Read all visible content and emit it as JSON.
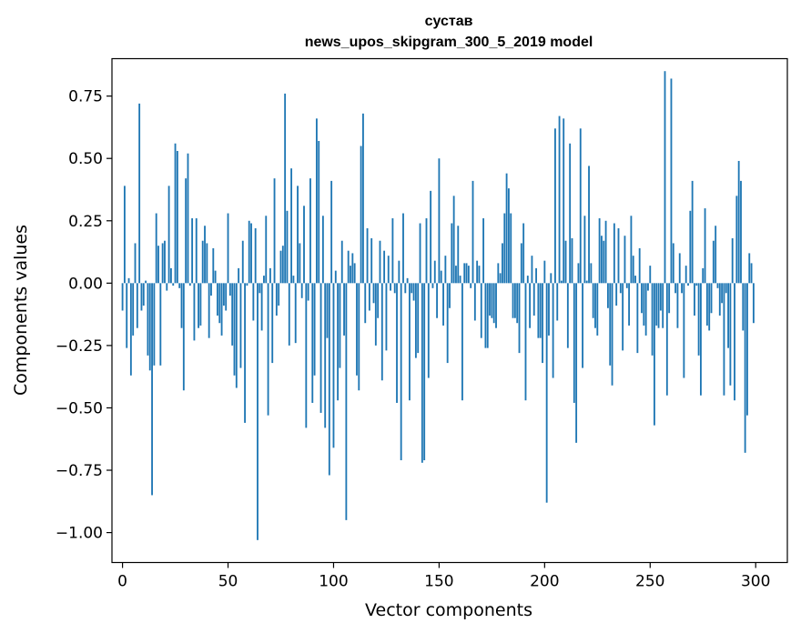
{
  "chart_data": {
    "type": "bar",
    "title": "сустав",
    "subtitle": "news_upos_skipgram_300_5_2019 model",
    "xlabel": "Vector components",
    "ylabel": "Components values",
    "xlim": [
      -5,
      315
    ],
    "ylim": [
      -1.12,
      0.9
    ],
    "grid": false,
    "color": "#1f77b4",
    "x_ticks": [
      0,
      50,
      100,
      150,
      200,
      250,
      300
    ],
    "x_tick_labels": [
      "0",
      "50",
      "100",
      "150",
      "200",
      "250",
      "300"
    ],
    "y_ticks": [
      0.75,
      0.5,
      0.25,
      0.0,
      -0.25,
      -0.5,
      -0.75,
      -1.0
    ],
    "y_tick_labels": [
      "0.75",
      "0.50",
      "0.25",
      "0.00",
      "−0.25",
      "−0.50",
      "−0.75",
      "−1.00"
    ],
    "values": [
      -0.11,
      0.39,
      -0.26,
      0.02,
      -0.37,
      -0.21,
      0.16,
      -0.18,
      0.72,
      -0.11,
      -0.09,
      0.01,
      -0.29,
      -0.35,
      -0.85,
      -0.33,
      0.28,
      0.15,
      -0.33,
      0.16,
      0.17,
      -0.03,
      0.39,
      0.06,
      -0.01,
      0.56,
      0.53,
      -0.02,
      -0.18,
      -0.43,
      0.42,
      0.52,
      -0.01,
      0.26,
      -0.23,
      0.26,
      -0.18,
      -0.17,
      0.17,
      0.23,
      0.16,
      -0.22,
      -0.05,
      0.14,
      0.05,
      -0.13,
      -0.16,
      -0.21,
      -0.09,
      -0.11,
      0.28,
      -0.05,
      -0.25,
      -0.37,
      -0.42,
      0.06,
      -0.34,
      0.17,
      -0.56,
      -0.01,
      0.25,
      0.24,
      -0.15,
      0.22,
      -1.03,
      -0.04,
      -0.19,
      0.03,
      0.27,
      -0.53,
      0.06,
      -0.32,
      0.42,
      -0.13,
      -0.09,
      0.13,
      0.15,
      0.76,
      0.29,
      -0.25,
      0.46,
      0.03,
      -0.24,
      0.39,
      0.16,
      -0.06,
      0.31,
      -0.58,
      -0.07,
      0.42,
      -0.48,
      -0.37,
      0.66,
      0.57,
      -0.52,
      0.27,
      -0.58,
      -0.22,
      -0.77,
      0.41,
      -0.66,
      0.05,
      -0.47,
      -0.34,
      0.17,
      -0.21,
      -0.95,
      0.13,
      0.07,
      0.12,
      0.08,
      -0.37,
      -0.43,
      0.55,
      0.68,
      -0.16,
      0.22,
      -0.11,
      0.18,
      -0.08,
      -0.25,
      -0.14,
      0.17,
      -0.39,
      0.13,
      -0.27,
      0.11,
      -0.03,
      0.26,
      -0.04,
      -0.48,
      0.09,
      -0.71,
      0.28,
      -0.04,
      0.02,
      -0.47,
      -0.04,
      -0.07,
      -0.3,
      -0.28,
      0.24,
      -0.72,
      -0.71,
      0.26,
      -0.38,
      0.37,
      -0.02,
      0.09,
      -0.14,
      0.5,
      0.05,
      -0.17,
      0.11,
      -0.32,
      -0.1,
      0.24,
      0.35,
      0.07,
      0.23,
      0.03,
      -0.47,
      0.08,
      0.08,
      0.07,
      -0.02,
      0.41,
      -0.15,
      0.09,
      0.07,
      -0.22,
      0.26,
      -0.26,
      -0.26,
      -0.13,
      -0.14,
      -0.16,
      -0.18,
      0.08,
      0.04,
      0.16,
      0.28,
      0.44,
      0.38,
      0.28,
      -0.14,
      -0.14,
      -0.16,
      -0.28,
      0.16,
      0.24,
      -0.47,
      0.03,
      -0.18,
      0.11,
      -0.13,
      0.06,
      -0.22,
      -0.22,
      -0.32,
      0.09,
      -0.88,
      -0.21,
      0.04,
      -0.38,
      0.62,
      -0.15,
      0.67,
      0.01,
      0.66,
      0.17,
      -0.26,
      0.56,
      0.18,
      -0.48,
      -0.64,
      0.08,
      0.62,
      -0.34,
      0.27,
      0.01,
      0.47,
      0.08,
      -0.14,
      -0.18,
      -0.21,
      0.26,
      0.19,
      0.17,
      0.25,
      -0.1,
      -0.33,
      -0.41,
      0.24,
      -0.09,
      0.22,
      -0.04,
      -0.27,
      0.19,
      -0.02,
      -0.17,
      0.27,
      0.11,
      0.03,
      -0.28,
      0.14,
      -0.12,
      -0.17,
      -0.21,
      -0.03,
      0.07,
      -0.29,
      -0.57,
      -0.17,
      -0.18,
      -0.11,
      -0.18,
      0.85,
      -0.45,
      -0.12,
      0.82,
      0.16,
      -0.04,
      -0.18,
      0.12,
      -0.04,
      -0.38,
      0.07,
      -0.01,
      0.29,
      0.41,
      -0.13,
      -0.01,
      -0.29,
      -0.45,
      0.06,
      0.3,
      -0.17,
      -0.19,
      -0.12,
      0.17,
      0.23,
      -0.02,
      -0.13,
      -0.08,
      -0.45,
      -0.04,
      -0.26,
      -0.41,
      0.18,
      -0.47,
      0.35,
      0.49,
      0.41,
      -0.19,
      -0.68,
      -0.53,
      0.12,
      0.08,
      -0.16
    ]
  }
}
